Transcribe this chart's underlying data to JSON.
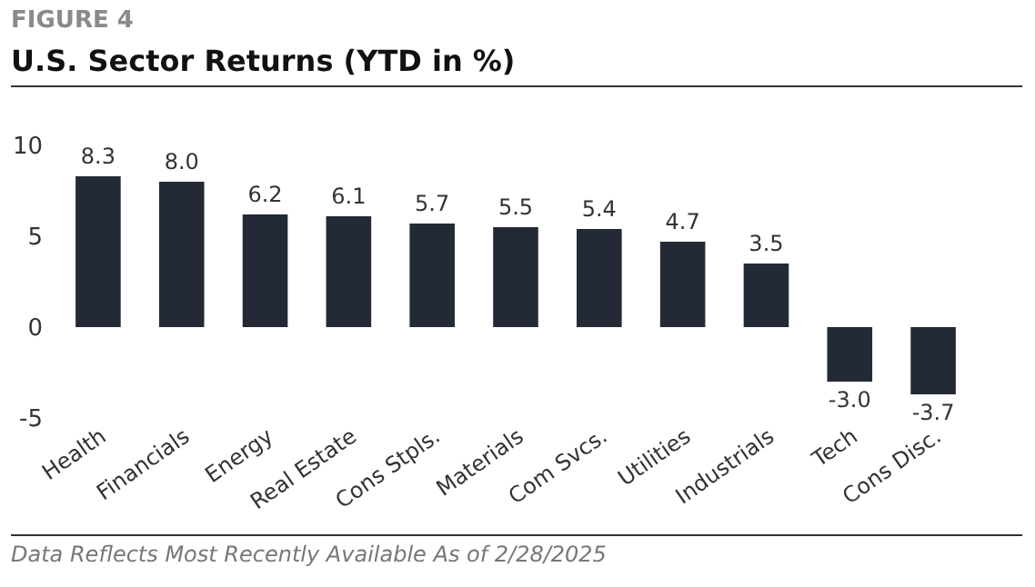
{
  "chart_data": {
    "type": "bar",
    "title": "U.S. Sector Returns (YTD in %)",
    "subtitle": "FIGURE 4",
    "categories": [
      "Health",
      "Financials",
      "Energy",
      "Real Estate",
      "Cons Stpls.",
      "Materials",
      "Com Svcs.",
      "Utilities",
      "Industrials",
      "Tech",
      "Cons Disc."
    ],
    "values": [
      8.3,
      8.0,
      6.2,
      6.1,
      5.7,
      5.5,
      5.4,
      4.7,
      3.5,
      -3.0,
      -3.7
    ],
    "color": "#232a36",
    "ylim": [
      -5,
      10
    ],
    "yticks": [
      -5,
      0,
      5,
      10
    ],
    "value_labels": [
      "8.3",
      "8.0",
      "6.2",
      "6.1",
      "5.7",
      "5.5",
      "5.4",
      "4.7",
      "3.5",
      "-3.0",
      "-3.7"
    ],
    "annotations": [
      "Data Reflects Most Recently Available As of 2/28/2025"
    ]
  }
}
